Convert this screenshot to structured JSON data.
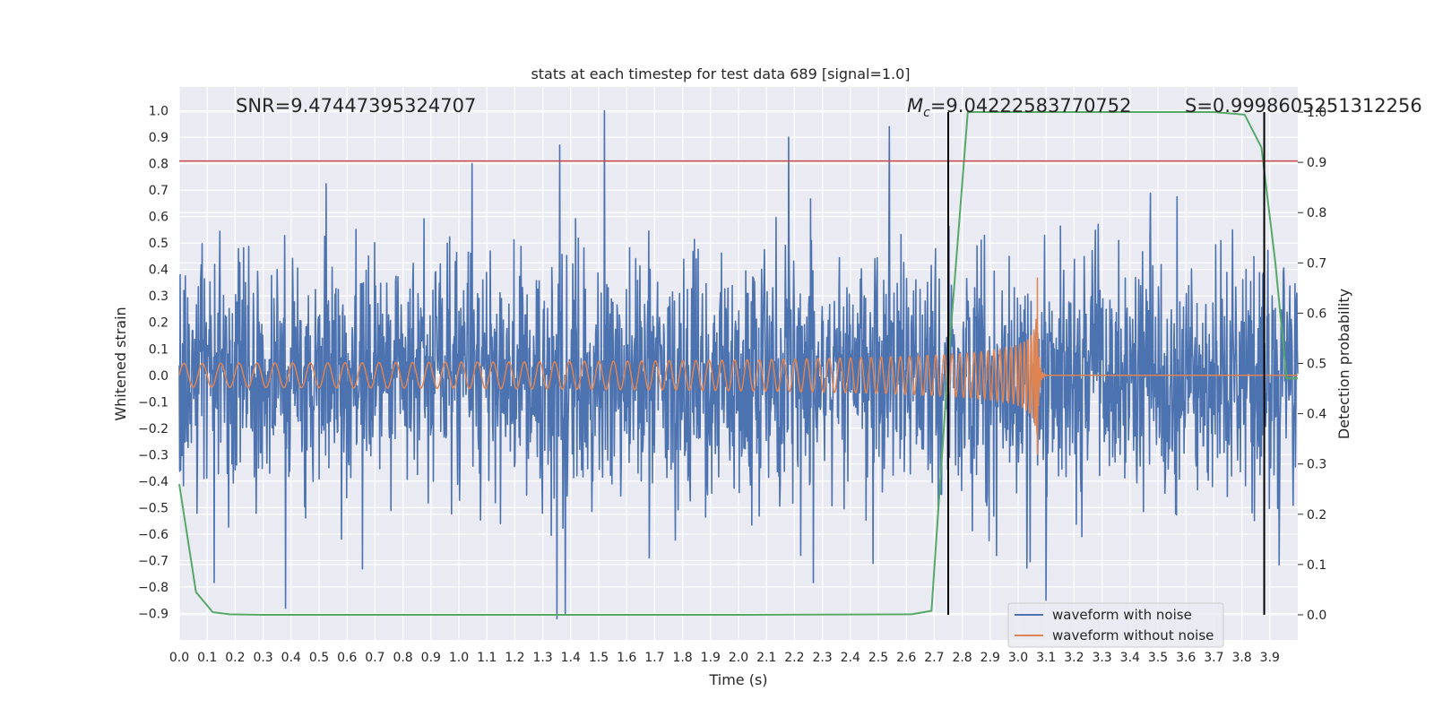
{
  "chart_data": {
    "type": "line",
    "title": "stats at each timestep for test data 689 [signal=1.0]",
    "xlabel": "Time (s)",
    "ylabel": "Whitened strain",
    "y2label": "Detection probability",
    "xlim": [
      0.0,
      4.0
    ],
    "ylim": [
      -1.0,
      1.09
    ],
    "y2lim": [
      -0.05,
      1.05
    ],
    "xticks": [
      "0.0",
      "0.1",
      "0.2",
      "0.3",
      "0.4",
      "0.5",
      "0.6",
      "0.7",
      "0.8",
      "0.9",
      "1.0",
      "1.1",
      "1.2",
      "1.3",
      "1.4",
      "1.5",
      "1.6",
      "1.7",
      "1.8",
      "1.9",
      "2.0",
      "2.1",
      "2.2",
      "2.3",
      "2.4",
      "2.5",
      "2.6",
      "2.7",
      "2.8",
      "2.9",
      "3.0",
      "3.1",
      "3.2",
      "3.3",
      "3.4",
      "3.5",
      "3.6",
      "3.7",
      "3.8",
      "3.9"
    ],
    "yticks": [
      "1.0",
      "0.9",
      "0.8",
      "0.7",
      "0.6",
      "0.5",
      "0.4",
      "0.3",
      "0.2",
      "0.1",
      "0.0",
      "−0.1",
      "−0.2",
      "−0.3",
      "−0.4",
      "−0.5",
      "−0.6",
      "−0.7",
      "−0.8",
      "−0.9"
    ],
    "y2ticks": [
      "1.0",
      "0.9",
      "0.8",
      "0.7",
      "0.6",
      "0.5",
      "0.4",
      "0.3",
      "0.2",
      "0.1",
      "0.0"
    ],
    "grid": true,
    "background": "#EAEAF2",
    "annotations": {
      "snr": "SNR=9.47447395324707",
      "mc_symbol": "M",
      "mc_sub": "c",
      "mc_value": "=9.04222583770752",
      "s": "S=0.9998605251312256"
    },
    "threshold_line": {
      "y": 0.81,
      "color": "#C44E52"
    },
    "vertical_lines": [
      2.75,
      3.88
    ],
    "series": [
      {
        "name": "waveform with noise",
        "color": "#4C72B0",
        "kind": "noise",
        "sigma": 0.22,
        "peaks": [
          [
            1.36,
            0.87
          ],
          [
            1.52,
            1.0
          ],
          [
            2.18,
            0.9
          ],
          [
            2.54,
            0.94
          ],
          [
            1.38,
            -0.9
          ],
          [
            0.38,
            -0.88
          ],
          [
            3.1,
            -0.85
          ]
        ]
      },
      {
        "name": "waveform without noise",
        "color": "#DD8452",
        "kind": "chirp",
        "t_merge": 3.07,
        "f0": 15,
        "amp0": 0.045,
        "peak_amp": 0.37,
        "min_amp": -0.3
      },
      {
        "name": "detection probability",
        "color": "#55A868",
        "axis": "y2",
        "x": [
          0.0,
          0.06,
          0.12,
          0.18,
          0.3,
          0.5,
          1.0,
          2.0,
          2.62,
          2.69,
          2.75,
          2.82,
          3.0,
          3.4,
          3.7,
          3.81,
          3.87,
          3.92,
          3.96,
          4.0
        ],
        "values": [
          0.26,
          0.045,
          0.005,
          0.001,
          0.0,
          0.0,
          0.0,
          0.0,
          0.001,
          0.008,
          0.5,
          1.0,
          1.0,
          1.0,
          1.0,
          0.995,
          0.93,
          0.7,
          0.47,
          0.47
        ]
      }
    ],
    "legend": {
      "placement": "lower-right",
      "entries": [
        "waveform with noise",
        "waveform without noise"
      ]
    }
  }
}
